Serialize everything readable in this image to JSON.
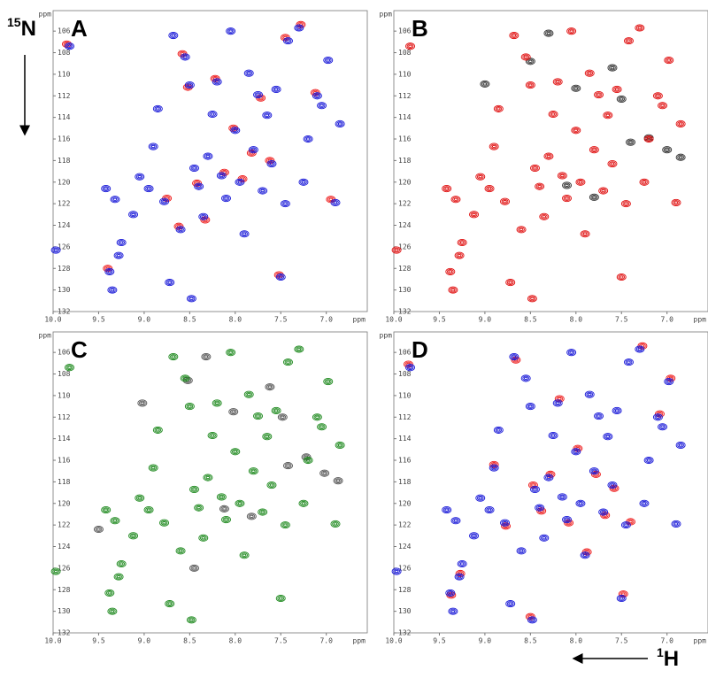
{
  "axis_titles": {
    "vertical": {
      "sup": "15",
      "text": "N"
    },
    "horizontal": {
      "sup": "1",
      "text": "H"
    }
  },
  "chart_data": [
    {
      "type": "scatter",
      "panel_label": "A",
      "xlabel": "ppm",
      "ylabel": "ppm",
      "xlim": [
        10.0,
        6.55
      ],
      "ylim": [
        104.1,
        132
      ],
      "xticks": [
        {
          "value": 10,
          "label": "10.0"
        },
        9.5,
        {
          "value": 9,
          "label": "9.0"
        },
        8.5,
        {
          "value": 8,
          "label": "8.0"
        },
        7.5,
        {
          "value": 7,
          "label": "7.0"
        }
      ],
      "yticks": [
        106,
        108,
        110,
        112,
        114,
        116,
        118,
        120,
        122,
        124,
        126,
        128,
        130,
        132
      ],
      "series": [
        {
          "color": "#ee1c1c",
          "x": [
            9.85,
            9.4,
            8.75,
            8.58,
            8.52,
            8.42,
            8.33,
            8.22,
            8.12,
            8.02,
            7.92,
            7.82,
            7.72,
            7.62,
            7.52,
            7.45,
            7.28,
            7.12,
            6.95,
            8.62
          ],
          "values": [
            107.2,
            128.0,
            121.5,
            108.1,
            111.2,
            120.1,
            123.5,
            110.4,
            119.1,
            115.0,
            119.7,
            117.3,
            112.2,
            118.0,
            128.6,
            106.6,
            105.4,
            111.7,
            121.6,
            124.1
          ]
        },
        {
          "color": "#1a1ad8",
          "x": [
            9.82,
            9.97,
            9.38,
            9.35,
            9.28,
            9.25,
            9.42,
            9.32,
            9.12,
            9.05,
            8.95,
            8.9,
            8.78,
            8.72,
            8.68,
            8.55,
            8.5,
            8.48,
            8.45,
            8.4,
            8.35,
            8.3,
            8.25,
            8.2,
            8.15,
            8.1,
            8.05,
            8.0,
            7.95,
            7.9,
            7.85,
            7.8,
            7.75,
            7.7,
            7.65,
            7.6,
            7.55,
            7.5,
            7.45,
            7.42,
            7.3,
            7.25,
            7.2,
            7.1,
            7.05,
            6.98,
            6.9,
            6.85,
            8.6,
            8.85
          ],
          "values": [
            107.4,
            126.3,
            128.3,
            130.0,
            126.8,
            125.6,
            120.6,
            121.6,
            123.0,
            119.5,
            120.6,
            116.7,
            121.8,
            129.3,
            106.4,
            108.4,
            111.0,
            130.8,
            118.7,
            120.4,
            123.2,
            117.6,
            113.7,
            110.7,
            119.4,
            121.5,
            106.0,
            115.2,
            120.0,
            124.8,
            109.9,
            117.0,
            111.9,
            120.8,
            113.8,
            118.3,
            111.4,
            128.8,
            122.0,
            106.9,
            105.7,
            120.0,
            116.0,
            112.0,
            112.9,
            108.7,
            121.9,
            114.6,
            124.4,
            113.2
          ]
        }
      ]
    },
    {
      "type": "scatter",
      "panel_label": "B",
      "xlabel": "ppm",
      "ylabel": "ppm",
      "xlim": [
        10.0,
        6.55
      ],
      "ylim": [
        104.1,
        132
      ],
      "xticks": [
        {
          "value": 10,
          "label": "10.0"
        },
        9.5,
        {
          "value": 9,
          "label": "9.0"
        },
        8.5,
        {
          "value": 8,
          "label": "8.0"
        },
        7.5,
        {
          "value": 7,
          "label": "7.0"
        }
      ],
      "yticks": [
        106,
        108,
        110,
        112,
        114,
        116,
        118,
        120,
        122,
        124,
        126,
        128,
        130,
        132
      ],
      "series": [
        {
          "color": "#333333",
          "x": [
            8.0,
            7.5,
            7.2,
            8.5,
            7.0,
            8.1,
            7.6,
            6.85,
            8.3,
            7.8,
            9.0,
            7.4
          ],
          "values": [
            111.3,
            112.3,
            115.9,
            108.8,
            117.0,
            120.3,
            109.4,
            117.7,
            106.2,
            121.4,
            110.9,
            116.3
          ]
        },
        {
          "color": "#e01010",
          "x": [
            9.82,
            9.97,
            9.38,
            9.35,
            9.28,
            9.25,
            9.42,
            9.32,
            9.12,
            9.05,
            8.95,
            8.9,
            8.78,
            8.72,
            8.68,
            8.55,
            8.5,
            8.48,
            8.45,
            8.4,
            8.35,
            8.3,
            8.25,
            8.2,
            8.15,
            8.1,
            8.05,
            8.0,
            7.95,
            7.9,
            7.85,
            7.8,
            7.75,
            7.7,
            7.65,
            7.6,
            7.55,
            7.5,
            7.45,
            7.42,
            7.3,
            7.25,
            7.2,
            7.1,
            7.05,
            6.98,
            6.9,
            6.85,
            8.6,
            8.85
          ],
          "values": [
            107.4,
            126.3,
            128.3,
            130.0,
            126.8,
            125.6,
            120.6,
            121.6,
            123.0,
            119.5,
            120.6,
            116.7,
            121.8,
            129.3,
            106.4,
            108.4,
            111.0,
            130.8,
            118.7,
            120.4,
            123.2,
            117.6,
            113.7,
            110.7,
            119.4,
            121.5,
            106.0,
            115.2,
            120.0,
            124.8,
            109.9,
            117.0,
            111.9,
            120.8,
            113.8,
            118.3,
            111.4,
            128.8,
            122.0,
            106.9,
            105.7,
            120.0,
            116.0,
            112.0,
            112.9,
            108.7,
            121.9,
            114.6,
            124.4,
            113.2
          ]
        }
      ]
    },
    {
      "type": "scatter",
      "panel_label": "C",
      "xlabel": "ppm",
      "ylabel": "ppm",
      "xlim": [
        10.0,
        6.55
      ],
      "ylim": [
        104.1,
        132
      ],
      "xticks": [
        {
          "value": 10,
          "label": "10.0"
        },
        9.5,
        {
          "value": 9,
          "label": "9.0"
        },
        8.5,
        {
          "value": 8,
          "label": "8.0"
        },
        7.5,
        {
          "value": 7,
          "label": "7.0"
        }
      ],
      "yticks": [
        106,
        108,
        110,
        112,
        114,
        116,
        118,
        120,
        122,
        124,
        126,
        128,
        130,
        132
      ],
      "series": [
        {
          "color": "#555555",
          "x": [
            8.02,
            7.48,
            7.22,
            8.52,
            7.02,
            8.12,
            7.62,
            6.87,
            8.32,
            7.82,
            9.02,
            7.42,
            8.45,
            9.5
          ],
          "values": [
            111.5,
            112.0,
            115.7,
            108.6,
            117.2,
            120.5,
            109.2,
            117.9,
            106.4,
            121.2,
            110.7,
            116.5,
            126.0,
            122.4
          ]
        },
        {
          "color": "#1f8a1f",
          "x": [
            9.82,
            9.97,
            9.38,
            9.35,
            9.28,
            9.25,
            9.42,
            9.32,
            9.12,
            9.05,
            8.95,
            8.9,
            8.78,
            8.72,
            8.68,
            8.55,
            8.5,
            8.48,
            8.45,
            8.4,
            8.35,
            8.3,
            8.25,
            8.2,
            8.15,
            8.1,
            8.05,
            8.0,
            7.95,
            7.9,
            7.85,
            7.8,
            7.75,
            7.7,
            7.65,
            7.6,
            7.55,
            7.5,
            7.45,
            7.42,
            7.3,
            7.25,
            7.2,
            7.1,
            7.05,
            6.98,
            6.9,
            6.85,
            8.6,
            8.85
          ],
          "values": [
            107.4,
            126.3,
            128.3,
            130.0,
            126.8,
            125.6,
            120.6,
            121.6,
            123.0,
            119.5,
            120.6,
            116.7,
            121.8,
            129.3,
            106.4,
            108.4,
            111.0,
            130.8,
            118.7,
            120.4,
            123.2,
            117.6,
            113.7,
            110.7,
            119.4,
            121.5,
            106.0,
            115.2,
            120.0,
            124.8,
            109.9,
            117.0,
            111.9,
            120.8,
            113.8,
            118.3,
            111.4,
            128.8,
            122.0,
            106.9,
            105.7,
            120.0,
            116.0,
            112.0,
            112.9,
            108.7,
            121.9,
            114.6,
            124.4,
            113.2
          ]
        }
      ]
    },
    {
      "type": "scatter",
      "panel_label": "D",
      "xlabel": "ppm",
      "ylabel": "ppm",
      "xlim": [
        10.0,
        6.55
      ],
      "ylim": [
        104.1,
        132
      ],
      "xticks": [
        {
          "value": 10,
          "label": "10.0"
        },
        9.5,
        {
          "value": 9,
          "label": "9.0"
        },
        8.5,
        {
          "value": 8,
          "label": "8.0"
        },
        7.5,
        {
          "value": 7,
          "label": "7.0"
        }
      ],
      "yticks": [
        106,
        108,
        110,
        112,
        114,
        116,
        118,
        120,
        122,
        124,
        126,
        128,
        130,
        132
      ],
      "series": [
        {
          "color": "#ee1c1c",
          "x": [
            9.84,
            9.37,
            9.27,
            8.77,
            8.66,
            8.47,
            8.38,
            8.28,
            8.18,
            8.08,
            7.98,
            7.88,
            7.78,
            7.68,
            7.58,
            7.48,
            7.4,
            7.27,
            7.08,
            6.96,
            8.5,
            8.9
          ],
          "values": [
            107.1,
            128.5,
            126.5,
            122.1,
            106.7,
            118.3,
            120.7,
            117.3,
            110.3,
            121.8,
            114.9,
            124.5,
            117.3,
            121.1,
            118.6,
            128.4,
            121.7,
            105.4,
            111.7,
            108.4,
            130.5,
            116.4
          ]
        },
        {
          "color": "#1a1ad8",
          "x": [
            9.82,
            9.97,
            9.38,
            9.35,
            9.28,
            9.25,
            9.42,
            9.32,
            9.12,
            9.05,
            8.95,
            8.9,
            8.78,
            8.72,
            8.68,
            8.55,
            8.5,
            8.48,
            8.45,
            8.4,
            8.35,
            8.3,
            8.25,
            8.2,
            8.15,
            8.1,
            8.05,
            8.0,
            7.95,
            7.9,
            7.85,
            7.8,
            7.75,
            7.7,
            7.65,
            7.6,
            7.55,
            7.5,
            7.45,
            7.42,
            7.3,
            7.25,
            7.2,
            7.1,
            7.05,
            6.98,
            6.9,
            6.85,
            8.6,
            8.85
          ],
          "values": [
            107.4,
            126.3,
            128.3,
            130.0,
            126.8,
            125.6,
            120.6,
            121.6,
            123.0,
            119.5,
            120.6,
            116.7,
            121.8,
            129.3,
            106.4,
            108.4,
            111.0,
            130.8,
            118.7,
            120.4,
            123.2,
            117.6,
            113.7,
            110.7,
            119.4,
            121.5,
            106.0,
            115.2,
            120.0,
            124.8,
            109.9,
            117.0,
            111.9,
            120.8,
            113.8,
            118.3,
            111.4,
            128.8,
            122.0,
            106.9,
            105.7,
            120.0,
            116.0,
            112.0,
            112.9,
            108.7,
            121.9,
            114.6,
            124.4,
            113.2
          ]
        }
      ]
    }
  ]
}
